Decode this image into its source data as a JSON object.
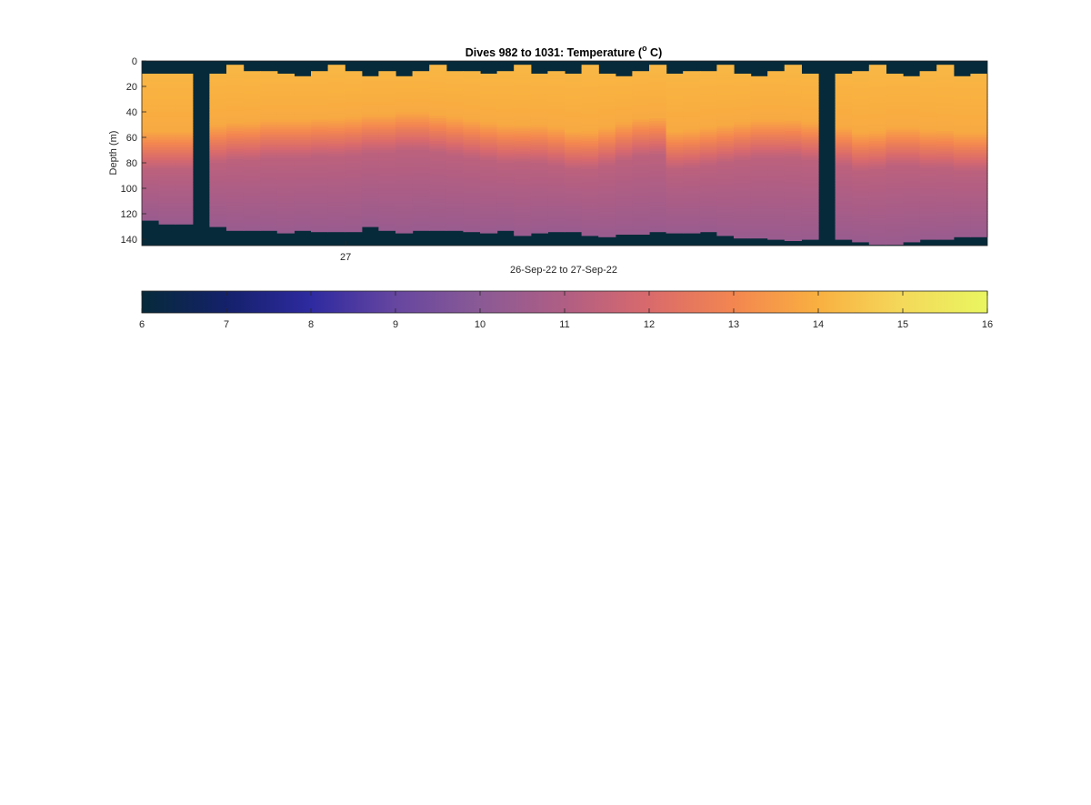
{
  "chart_data": {
    "type": "heatmap",
    "title_main": "Dives 982 to 1031: Temperature (",
    "title_sup": "o",
    "title_end": " C)",
    "xlabel": "26-Sep-22 to 27-Sep-22",
    "ylabel": "Depth (m)",
    "x_tick_labels": [
      "27"
    ],
    "y_tick_labels": [
      "0",
      "20",
      "40",
      "60",
      "80",
      "100",
      "120",
      "140"
    ],
    "y_ticks": [
      0,
      20,
      40,
      60,
      80,
      100,
      120,
      140
    ],
    "ylim": [
      0,
      145
    ],
    "y_reversed": true,
    "no_data_color": "#062a3a",
    "colorbar": {
      "orientation": "horizontal",
      "range": [
        6,
        16
      ],
      "tick_labels": [
        "6",
        "7",
        "8",
        "9",
        "10",
        "11",
        "12",
        "13",
        "14",
        "15",
        "16"
      ],
      "ticks": [
        6,
        7,
        8,
        9,
        10,
        11,
        12,
        13,
        14,
        15,
        16
      ],
      "colormap_stops": [
        {
          "value": 6,
          "color": "#062a3a"
        },
        {
          "value": 7,
          "color": "#14216a"
        },
        {
          "value": 8,
          "color": "#2e2aa0"
        },
        {
          "value": 9,
          "color": "#6646a0"
        },
        {
          "value": 10,
          "color": "#8a5a95"
        },
        {
          "value": 11,
          "color": "#b05e84"
        },
        {
          "value": 12,
          "color": "#d96a6c"
        },
        {
          "value": 13,
          "color": "#f38650"
        },
        {
          "value": 14,
          "color": "#f9b040"
        },
        {
          "value": 15,
          "color": "#f4d95a"
        },
        {
          "value": 16,
          "color": "#e9f660"
        }
      ]
    },
    "profile_surface_temp": 14.2,
    "profile_mixed_layer_depth": 48,
    "profile_mid_temp": 11.3,
    "profile_deep_temp": 10.4,
    "dives": [
      {
        "start": 10,
        "bottom": 125,
        "mld": 55
      },
      {
        "start": 10,
        "bottom": 128,
        "mld": 55
      },
      {
        "start": 10,
        "bottom": 128,
        "mld": 55
      },
      {
        "start": null,
        "bottom": null,
        "mld": null
      },
      {
        "start": 10,
        "bottom": 130,
        "mld": 50
      },
      {
        "start": 3,
        "bottom": 133,
        "mld": 48
      },
      {
        "start": 8,
        "bottom": 133,
        "mld": 48
      },
      {
        "start": 8,
        "bottom": 133,
        "mld": 46
      },
      {
        "start": 10,
        "bottom": 135,
        "mld": 46
      },
      {
        "start": 12,
        "bottom": 133,
        "mld": 46
      },
      {
        "start": 8,
        "bottom": 134,
        "mld": 45
      },
      {
        "start": 3,
        "bottom": 134,
        "mld": 45
      },
      {
        "start": 8,
        "bottom": 134,
        "mld": 44
      },
      {
        "start": 12,
        "bottom": 130,
        "mld": 42
      },
      {
        "start": 8,
        "bottom": 133,
        "mld": 42
      },
      {
        "start": 12,
        "bottom": 135,
        "mld": 40
      },
      {
        "start": 8,
        "bottom": 133,
        "mld": 40
      },
      {
        "start": 3,
        "bottom": 133,
        "mld": 42
      },
      {
        "start": 8,
        "bottom": 133,
        "mld": 44
      },
      {
        "start": 8,
        "bottom": 134,
        "mld": 46
      },
      {
        "start": 10,
        "bottom": 135,
        "mld": 48
      },
      {
        "start": 8,
        "bottom": 133,
        "mld": 50
      },
      {
        "start": 3,
        "bottom": 137,
        "mld": 50
      },
      {
        "start": 10,
        "bottom": 135,
        "mld": 50
      },
      {
        "start": 8,
        "bottom": 134,
        "mld": 52
      },
      {
        "start": 10,
        "bottom": 134,
        "mld": 55
      },
      {
        "start": 3,
        "bottom": 137,
        "mld": 55
      },
      {
        "start": 10,
        "bottom": 138,
        "mld": 52
      },
      {
        "start": 12,
        "bottom": 136,
        "mld": 48
      },
      {
        "start": 8,
        "bottom": 136,
        "mld": 45
      },
      {
        "start": 3,
        "bottom": 134,
        "mld": 44
      },
      {
        "start": 10,
        "bottom": 135,
        "mld": 55
      },
      {
        "start": 8,
        "bottom": 135,
        "mld": 54
      },
      {
        "start": 8,
        "bottom": 134,
        "mld": 52
      },
      {
        "start": 3,
        "bottom": 137,
        "mld": 50
      },
      {
        "start": 10,
        "bottom": 139,
        "mld": 48
      },
      {
        "start": 12,
        "bottom": 139,
        "mld": 46
      },
      {
        "start": 8,
        "bottom": 140,
        "mld": 46
      },
      {
        "start": 3,
        "bottom": 141,
        "mld": 46
      },
      {
        "start": 10,
        "bottom": 140,
        "mld": 48
      },
      {
        "start": null,
        "bottom": null,
        "mld": null
      },
      {
        "start": 10,
        "bottom": 140,
        "mld": 52
      },
      {
        "start": 8,
        "bottom": 142,
        "mld": 56
      },
      {
        "start": 3,
        "bottom": 144,
        "mld": 55
      },
      {
        "start": 10,
        "bottom": 144,
        "mld": 52
      },
      {
        "start": 12,
        "bottom": 142,
        "mld": 52
      },
      {
        "start": 8,
        "bottom": 140,
        "mld": 54
      },
      {
        "start": 3,
        "bottom": 140,
        "mld": 54
      },
      {
        "start": 12,
        "bottom": 138,
        "mld": 56
      },
      {
        "start": 10,
        "bottom": 138,
        "mld": 56
      }
    ]
  }
}
